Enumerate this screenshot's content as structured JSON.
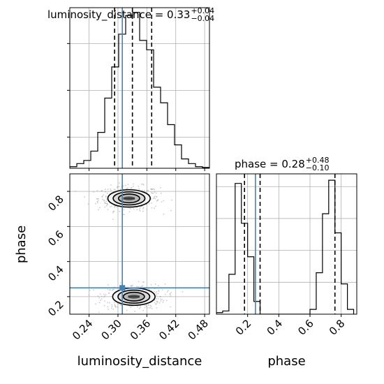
{
  "chart_data": {
    "type": "corner",
    "parameters": [
      "luminosity_distance",
      "phase"
    ],
    "axis_labels": {
      "x_left": "luminosity_distance",
      "x_right": "phase",
      "y": "phase"
    },
    "panels": [
      {
        "id": "hist_luminosity_distance",
        "type": "histogram",
        "title": {
          "base": "luminosity_distance = 0.33",
          "upper": "+0.04",
          "lower": "−0.04"
        },
        "xlim": [
          0.2,
          0.49
        ],
        "ylim": [
          0,
          1.03
        ],
        "bins": [
          0.2,
          0.2145,
          0.229,
          0.2435,
          0.258,
          0.2725,
          0.287,
          0.3015,
          0.316,
          0.3305,
          0.345,
          0.3595,
          0.374,
          0.3885,
          0.403,
          0.4175,
          0.432,
          0.4465,
          0.461,
          0.4755,
          0.49
        ],
        "counts": [
          0.01,
          0.03,
          0.05,
          0.11,
          0.23,
          0.45,
          0.65,
          0.86,
          0.98,
          1.0,
          0.82,
          0.76,
          0.52,
          0.42,
          0.28,
          0.15,
          0.06,
          0.03,
          0.01,
          0.005
        ],
        "quantiles": [
          0.293,
          0.33,
          0.37
        ],
        "truth": 0.309
      },
      {
        "id": "hist_phase",
        "type": "histogram",
        "title": {
          "base": "phase = 0.28",
          "upper": "+0.48",
          "lower": "−0.10"
        },
        "xlim": [
          0.0,
          0.9
        ],
        "ylim": [
          0,
          0.88
        ],
        "bins": [
          0.0,
          0.04,
          0.08,
          0.12,
          0.16,
          0.2,
          0.24,
          0.28,
          0.32,
          0.36,
          0.4,
          0.44,
          0.48,
          0.52,
          0.56,
          0.6,
          0.64,
          0.68,
          0.72,
          0.76,
          0.8,
          0.84,
          0.88
        ],
        "counts": [
          0.01,
          0.02,
          0.25,
          0.82,
          0.57,
          0.36,
          0.08,
          0.0,
          0.0,
          0.0,
          0.0,
          0.0,
          0.0,
          0.0,
          0.0,
          0.03,
          0.26,
          0.63,
          0.84,
          0.51,
          0.19,
          0.03
        ],
        "quantiles": [
          0.18,
          0.28,
          0.76
        ],
        "truth": 0.25
      },
      {
        "id": "joint_luminosity_distance_phase",
        "type": "2d_density",
        "xlim": [
          0.2,
          0.49
        ],
        "ylim": [
          0.1,
          0.9
        ],
        "modes": [
          {
            "x": 0.323,
            "y": 0.76,
            "sx": 0.02,
            "sy": 0.025
          },
          {
            "x": 0.333,
            "y": 0.2,
            "sx": 0.02,
            "sy": 0.025
          }
        ],
        "truth": {
          "x": 0.309,
          "y": 0.25
        }
      }
    ],
    "ticks": {
      "luminosity_distance": [
        "0.24",
        "0.30",
        "0.36",
        "0.42",
        "0.48"
      ],
      "phase_y": [
        "0.2",
        "0.4",
        "0.6",
        "0.8"
      ],
      "phase_x": [
        "0.2",
        "0.4",
        "0.6",
        "0.8"
      ]
    },
    "colors": {
      "truth": "#4682b4",
      "hist": "#000000",
      "grid": "#b0b0b0",
      "scatter": "#a0a0a0"
    }
  }
}
